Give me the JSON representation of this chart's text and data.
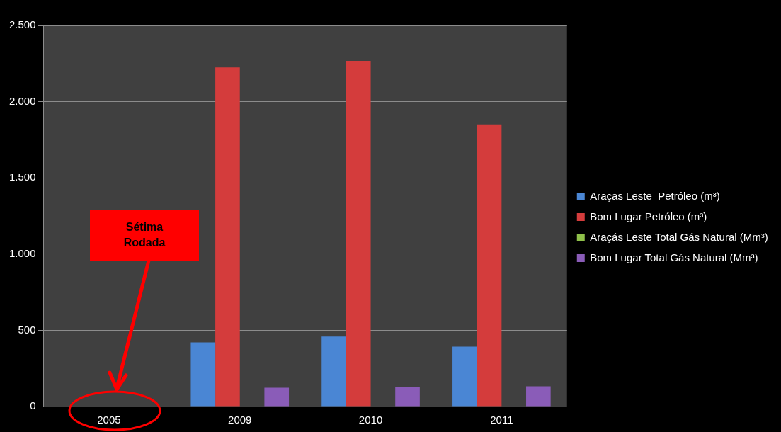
{
  "chart_data": {
    "type": "bar",
    "categories": [
      "2005",
      "2009",
      "2010",
      "2011"
    ],
    "series": [
      {
        "name": "Araças Leste  Petróleo (m³)",
        "color": "#4a86d4",
        "values": [
          null,
          421,
          459,
          393
        ]
      },
      {
        "name": "Bom Lugar Petróleo (m³)",
        "color": "#d43c3c",
        "values": [
          null,
          2225,
          2268,
          1851
        ]
      },
      {
        "name": "Araçás Leste Total Gás Natural (Mm³)",
        "color": "#8fc04a",
        "values": [
          null,
          null,
          null,
          null
        ]
      },
      {
        "name": "Bom Lugar Total Gás Natural (Mm³)",
        "color": "#8a5cb8",
        "values": [
          null,
          123,
          128,
          133
        ]
      }
    ],
    "ylim": [
      0,
      2500
    ],
    "yticks": [
      0,
      500,
      {
        "value": 1000,
        "label": "1.000"
      },
      {
        "value": 1500,
        "label": "1.500"
      },
      {
        "value": 2000,
        "label": "2.000"
      },
      {
        "value": 2500,
        "label": "2.500"
      }
    ],
    "grid": "y",
    "legend": "right",
    "annotations": [
      "Sétima Rodada"
    ]
  }
}
